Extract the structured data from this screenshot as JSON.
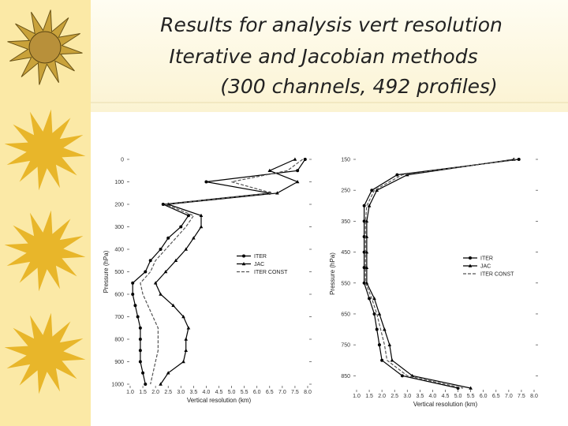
{
  "title_lines": [
    "Results for analysis vert resolution",
    "Iterative and Jacobian methods",
    "(300 channels, 492 profiles)"
  ],
  "chart_data": [
    {
      "type": "line",
      "ylabel": "Pressure (hPa)",
      "xlabel": "Vertical resolution (km)",
      "levels": [
        0,
        50,
        100,
        150,
        200,
        250,
        300,
        350,
        400,
        450,
        500,
        550,
        600,
        650,
        700,
        750,
        800,
        850,
        900,
        950,
        1000
      ],
      "ylim": [
        0,
        1000
      ],
      "yticks": [
        0,
        100,
        200,
        300,
        400,
        500,
        600,
        700,
        800,
        900,
        1000
      ],
      "xlim": [
        1,
        8
      ],
      "xticks": [
        {
          "value": 1,
          "label": "1.0"
        },
        1.5,
        {
          "value": 2,
          "label": "2.0"
        },
        2.5,
        {
          "value": 3,
          "label": "3.0"
        },
        3.5,
        {
          "value": 4,
          "label": "4.0"
        },
        4.5,
        {
          "value": 5,
          "label": "5.0"
        },
        5.5,
        {
          "value": 6,
          "label": "6.0"
        },
        6.5,
        {
          "value": 7,
          "label": "7.0"
        },
        7.5,
        {
          "value": 8,
          "label": "8.0"
        }
      ],
      "legend": "right",
      "series": [
        {
          "name": "ITER",
          "color": "#000000",
          "marker": "circle",
          "dashed": false,
          "values": [
            7.9,
            7.6,
            4.0,
            6.5,
            2.3,
            3.3,
            3.0,
            2.5,
            2.2,
            1.8,
            1.6,
            1.1,
            1.1,
            1.2,
            1.3,
            1.4,
            1.4,
            1.4,
            1.4,
            1.5,
            1.6
          ]
        },
        {
          "name": "JAC",
          "color": "#000000",
          "marker": "triangle",
          "dashed": false,
          "values": [
            7.5,
            6.5,
            7.6,
            6.8,
            2.5,
            3.8,
            3.8,
            3.5,
            3.2,
            2.8,
            2.4,
            2.0,
            2.2,
            2.7,
            3.1,
            3.3,
            3.2,
            3.2,
            3.1,
            2.5,
            2.2
          ]
        },
        {
          "name": "ITER CONST",
          "color": "#555555",
          "marker": null,
          "dashed": true,
          "values": [
            7.8,
            7.2,
            5.0,
            6.6,
            2.4,
            3.5,
            3.2,
            2.8,
            2.4,
            2.0,
            1.8,
            1.4,
            1.5,
            1.7,
            1.9,
            2.1,
            2.1,
            2.1,
            2.0,
            1.9,
            1.8
          ]
        }
      ]
    },
    {
      "type": "line",
      "ylabel": "Pressure (hPa)",
      "xlabel": "Vertical resolution (km)",
      "levels": [
        150,
        200,
        250,
        300,
        350,
        400,
        450,
        500,
        550,
        600,
        650,
        700,
        750,
        800,
        850,
        890
      ],
      "ylim": [
        150,
        890
      ],
      "yticks": [
        150,
        250,
        350,
        450,
        550,
        650,
        750,
        850
      ],
      "xlim": [
        1,
        8
      ],
      "xticks": [
        {
          "value": 1,
          "label": "1.0"
        },
        1.5,
        {
          "value": 2,
          "label": "2.0"
        },
        2.5,
        {
          "value": 3,
          "label": "3.0"
        },
        3.5,
        {
          "value": 4,
          "label": "4.0"
        },
        4.5,
        {
          "value": 5,
          "label": "5.0"
        },
        5.5,
        {
          "value": 6,
          "label": "6.0"
        },
        6.5,
        {
          "value": 7,
          "label": "7.0"
        },
        7.5,
        {
          "value": 8,
          "label": "8.0"
        }
      ],
      "legend": "right",
      "series": [
        {
          "name": "ITER",
          "color": "#000000",
          "marker": "circle",
          "dashed": false,
          "values": [
            7.4,
            2.6,
            1.6,
            1.3,
            1.3,
            1.3,
            1.3,
            1.3,
            1.3,
            1.5,
            1.7,
            1.8,
            1.9,
            2.0,
            2.8,
            5.0
          ]
        },
        {
          "name": "JAC",
          "color": "#000000",
          "marker": "triangle",
          "dashed": false,
          "values": [
            7.2,
            3.0,
            1.8,
            1.5,
            1.4,
            1.4,
            1.4,
            1.4,
            1.4,
            1.7,
            1.9,
            2.1,
            2.3,
            2.4,
            3.2,
            5.5
          ]
        },
        {
          "name": "ITER CONST",
          "color": "#555555",
          "marker": null,
          "dashed": true,
          "values": [
            7.3,
            2.8,
            1.7,
            1.4,
            1.35,
            1.35,
            1.35,
            1.35,
            1.35,
            1.6,
            1.8,
            1.95,
            2.1,
            2.2,
            3.0,
            5.2
          ]
        }
      ]
    }
  ]
}
